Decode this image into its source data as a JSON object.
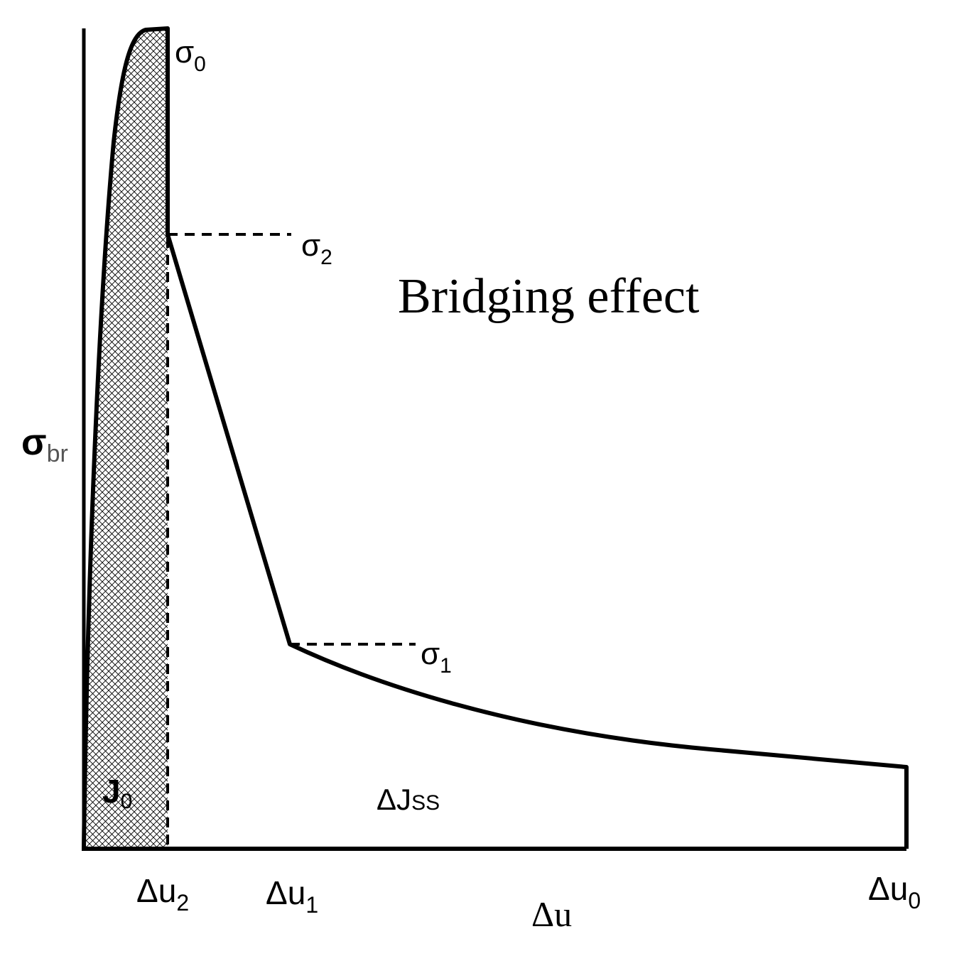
{
  "labels": {
    "y_axis": {
      "main": "σ",
      "sub": "br"
    },
    "x_axis": "Δu",
    "sigma0": {
      "main": "σ",
      "sub": "0"
    },
    "sigma2": {
      "main": "σ",
      "sub": "2"
    },
    "sigma1": {
      "main": "σ",
      "sub": "1"
    },
    "bridging": "Bridging effect",
    "j0": {
      "main": "J",
      "sub": "0"
    },
    "delta_jss": {
      "main": "ΔJ",
      "sub": "SS"
    },
    "du2": {
      "main": "Δu",
      "sub": "2"
    },
    "du1": {
      "main": "Δu",
      "sub": "1"
    },
    "du0": {
      "main": "Δu",
      "sub": "0"
    }
  },
  "colors": {
    "stroke": "#000000",
    "background": "#ffffff",
    "hatch": "#000000"
  }
}
